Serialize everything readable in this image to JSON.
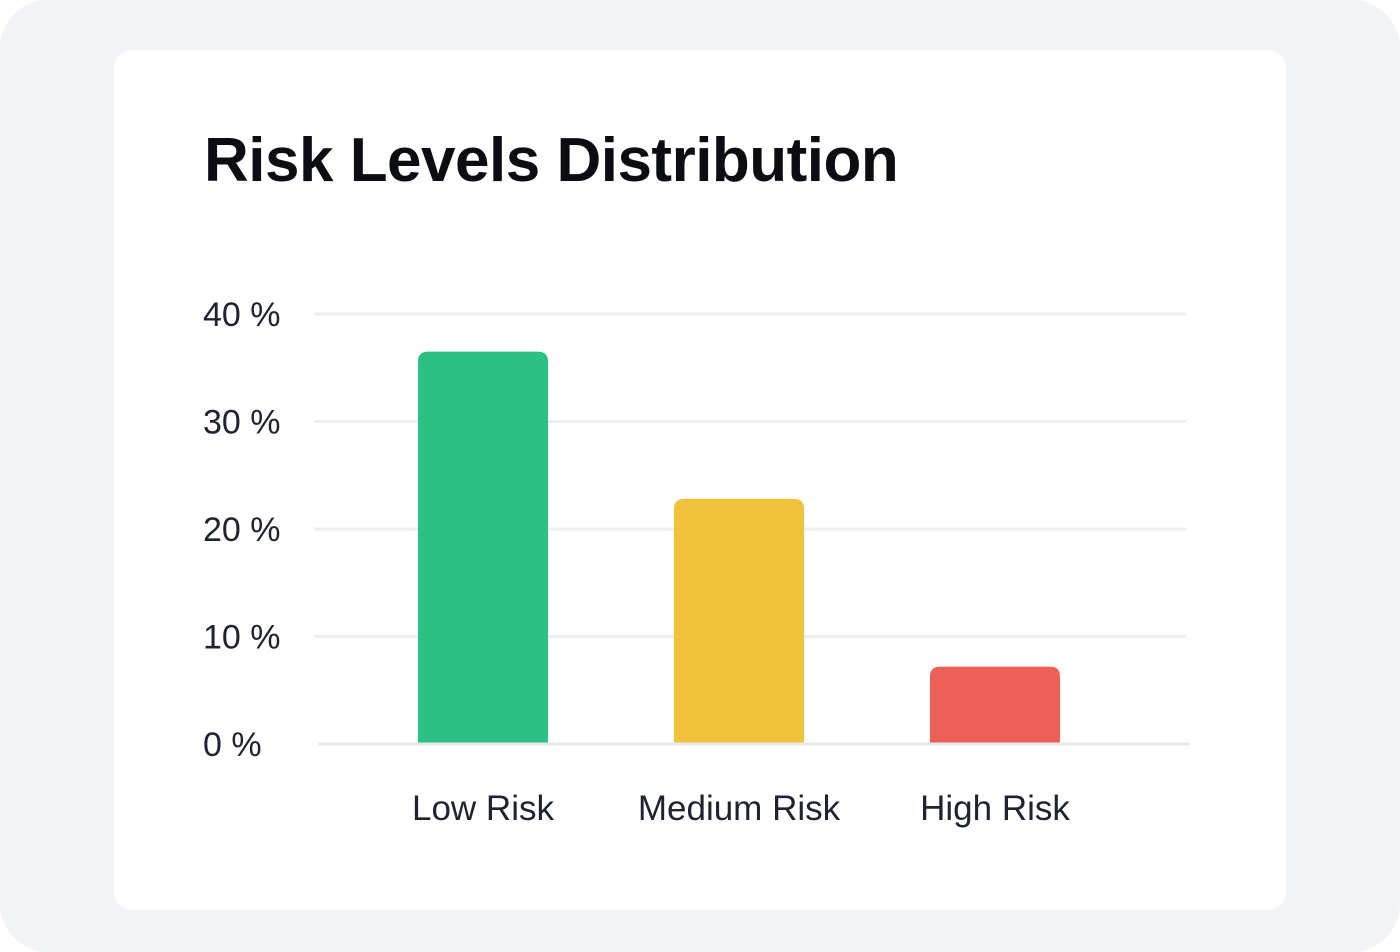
{
  "chart_data": {
    "type": "bar",
    "title": "Risk Levels Distribution",
    "xlabel": "",
    "ylabel": "",
    "categories": [
      "Low Risk",
      "Medium Risk",
      "High Risk"
    ],
    "values": [
      36.5,
      22.8,
      7.2
    ],
    "colors": [
      "#2bc185",
      "#f1c23c",
      "#eb5f55"
    ],
    "ylim": [
      0,
      40
    ],
    "yticks": [
      0,
      10,
      20,
      30,
      40
    ],
    "ytick_labels": [
      "0 %",
      "10 %",
      "20 %",
      "30 %",
      "40 %"
    ],
    "grid": true,
    "legend": "none"
  }
}
